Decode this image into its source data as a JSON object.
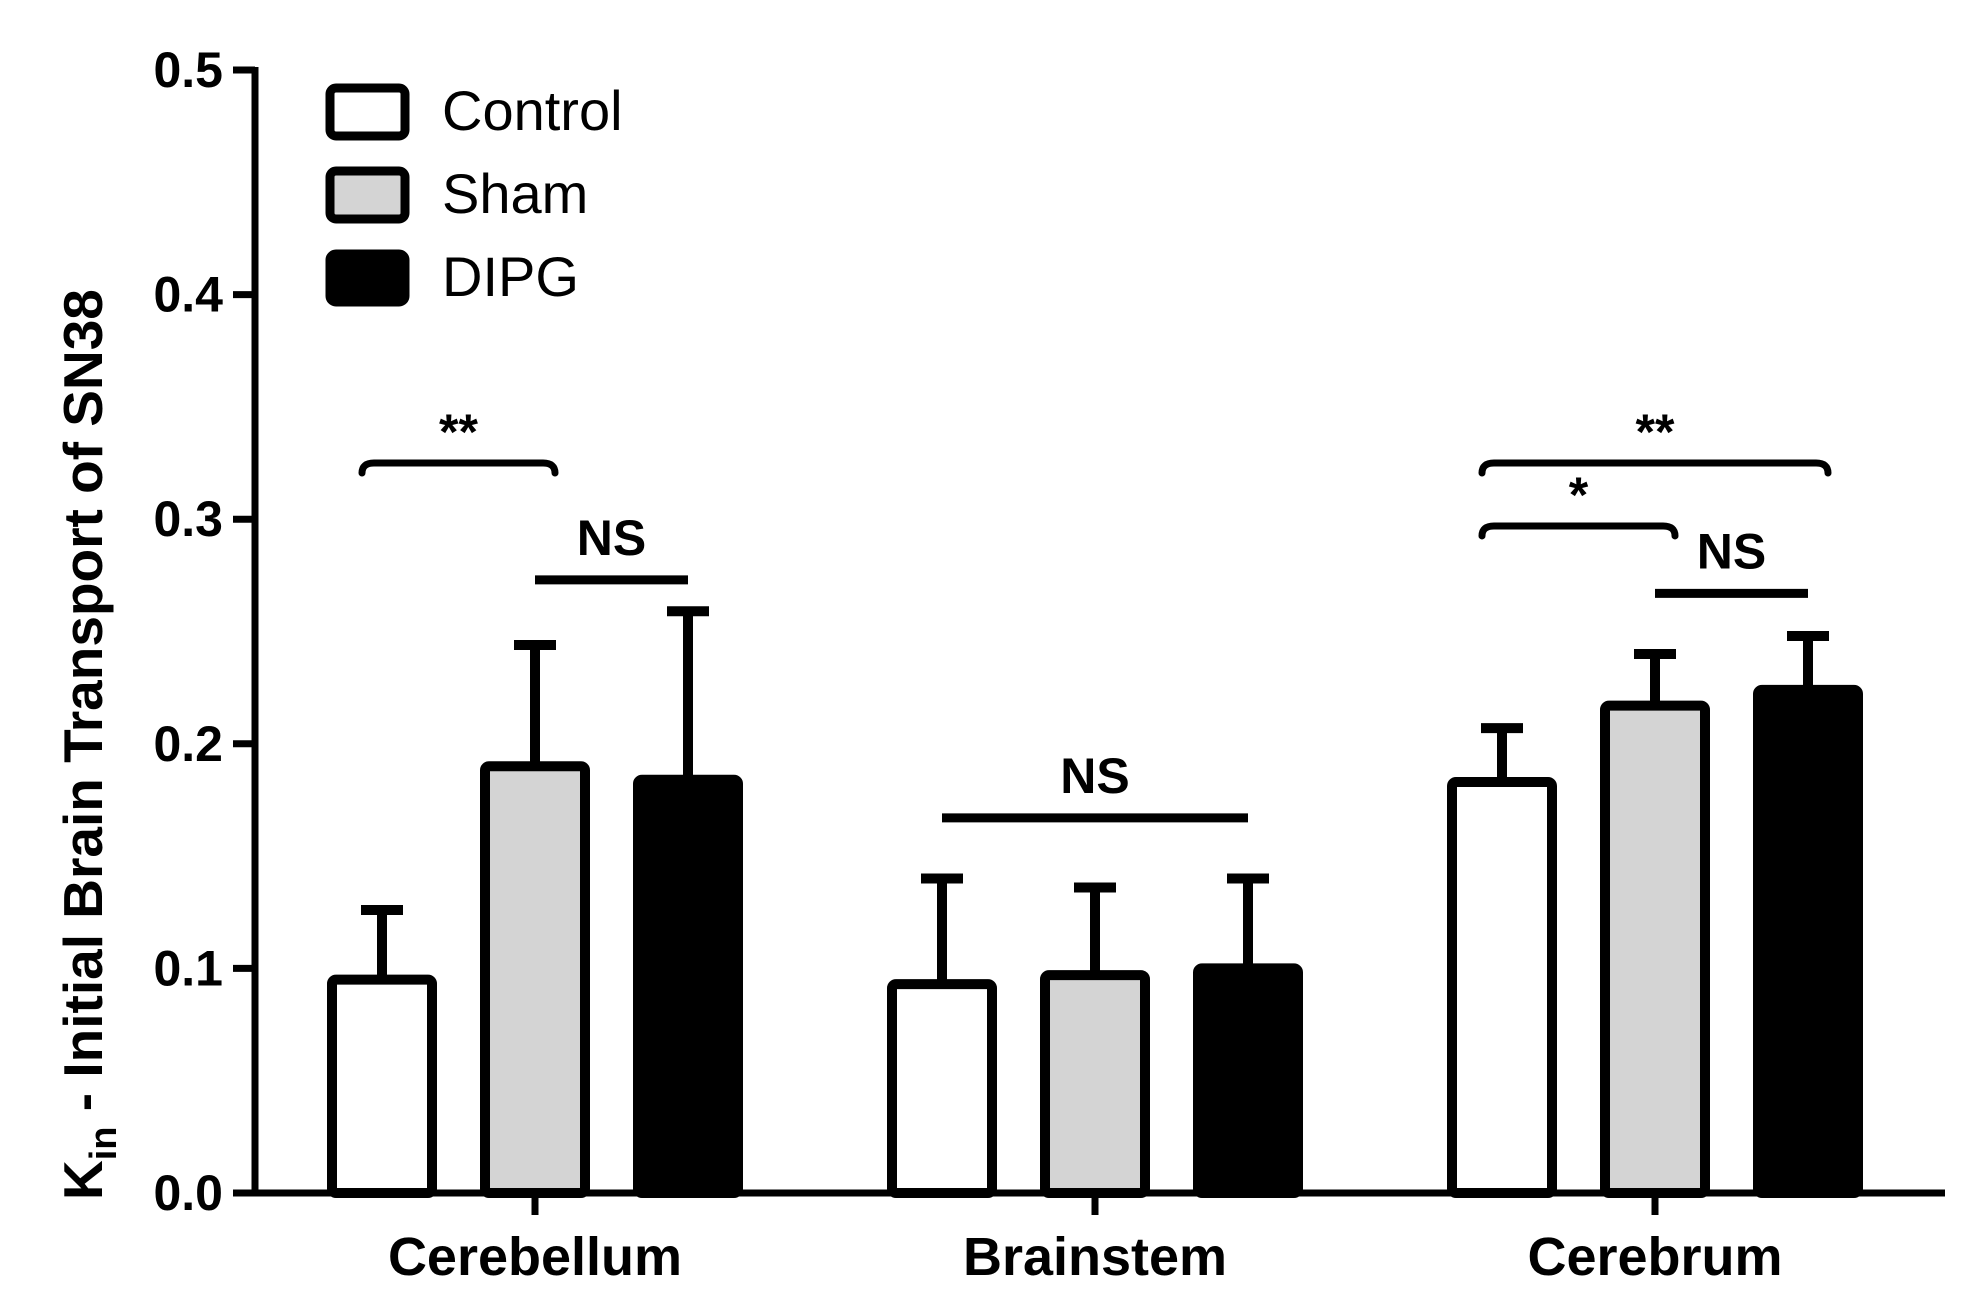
{
  "chart_data": {
    "type": "bar",
    "title": "",
    "xlabel": "",
    "ylabel_main": "K",
    "ylabel_sub": "in",
    "ylabel_rest": " - Initial  Brain Transport of SN38",
    "ylim": [
      0,
      0.5
    ],
    "yticks": [
      "0.0",
      "0.1",
      "0.2",
      "0.3",
      "0.4",
      "0.5"
    ],
    "categories": [
      "Cerebellum",
      "Brainstem",
      "Cerebrum"
    ],
    "series": [
      {
        "name": "Control",
        "fill": "#ffffff",
        "values": [
          0.095,
          0.093,
          0.183
        ],
        "errors": [
          0.031,
          0.047,
          0.024
        ]
      },
      {
        "name": "Sham",
        "fill": "#d4d4d4",
        "values": [
          0.19,
          0.097,
          0.217
        ],
        "errors": [
          0.054,
          0.039,
          0.023
        ]
      },
      {
        "name": "DIPG",
        "fill": "#000000",
        "values": [
          0.184,
          0.1,
          0.224
        ],
        "errors": [
          0.075,
          0.04,
          0.024
        ]
      }
    ],
    "legend_position": "top-left",
    "annotations": [
      {
        "label": "**",
        "style": "bracket",
        "category": 0,
        "from_series": 0,
        "to_series": 1,
        "level": 0.325
      },
      {
        "label": "NS",
        "style": "line",
        "category": 0,
        "from_series": 1,
        "to_series": 2,
        "level": 0.273
      },
      {
        "label": "NS",
        "style": "line",
        "category": 1,
        "from_series": 0,
        "to_series": 2,
        "level": 0.167
      },
      {
        "label": "**",
        "style": "bracket",
        "category": 2,
        "from_series": 0,
        "to_series": 2,
        "level": 0.325
      },
      {
        "label": "*",
        "style": "bracket",
        "category": 2,
        "from_series": 0,
        "to_series": 1,
        "level": 0.297
      },
      {
        "label": "NS",
        "style": "line",
        "category": 2,
        "from_series": 1,
        "to_series": 2,
        "level": 0.267
      }
    ]
  }
}
